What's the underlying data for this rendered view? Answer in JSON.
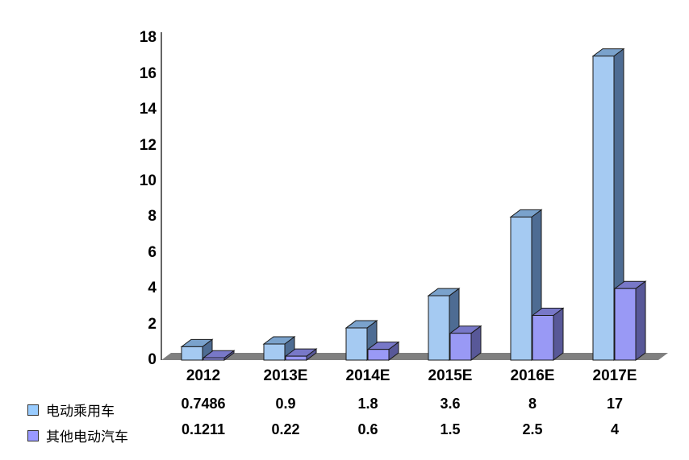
{
  "chart_data": {
    "type": "bar",
    "style": "3d-column-with-data-table",
    "title": "",
    "categories": [
      "2012",
      "2013E",
      "2014E",
      "2015E",
      "2016E",
      "2017E"
    ],
    "series": [
      {
        "name": "电动乘用车",
        "values": [
          0.7486,
          0.9,
          1.8,
          3.6,
          8,
          17
        ],
        "display": [
          "0.7486",
          "0.9",
          "1.8",
          "3.6",
          "8",
          "17"
        ],
        "legend_color": "#99CCFF",
        "front_color": "#A5CAF2",
        "top_color": "#7AA2CC",
        "side_color": "#4E6C93"
      },
      {
        "name": "其他电动汽车",
        "values": [
          0.1211,
          0.22,
          0.6,
          1.5,
          2.5,
          4
        ],
        "display": [
          "0.1211",
          "0.22",
          "0.6",
          "1.5",
          "2.5",
          "4"
        ],
        "legend_color": "#9999FF",
        "front_color": "#9999F5",
        "top_color": "#7878C8",
        "side_color": "#585898"
      }
    ],
    "xlabel": "",
    "ylabel": "",
    "ylim": [
      0,
      18
    ],
    "y_ticks": [
      "0",
      "2",
      "4",
      "6",
      "8",
      "10",
      "12",
      "14",
      "16",
      "18"
    ],
    "grid": false,
    "legend_position": "bottom-left",
    "data_table_shown": true,
    "highlight": {
      "columns": [
        "2013E",
        "2014E",
        "2015E"
      ],
      "fill": "#1B6E38"
    }
  },
  "colors": {
    "background": "#FFFFFF",
    "text": "#000000",
    "axis": "#333333",
    "floor": "#808080",
    "bar_outline": "#1A1A1A",
    "table_green": "#1B6E38",
    "table_border": "#000000",
    "table_top_line": "#FFFFFF"
  }
}
